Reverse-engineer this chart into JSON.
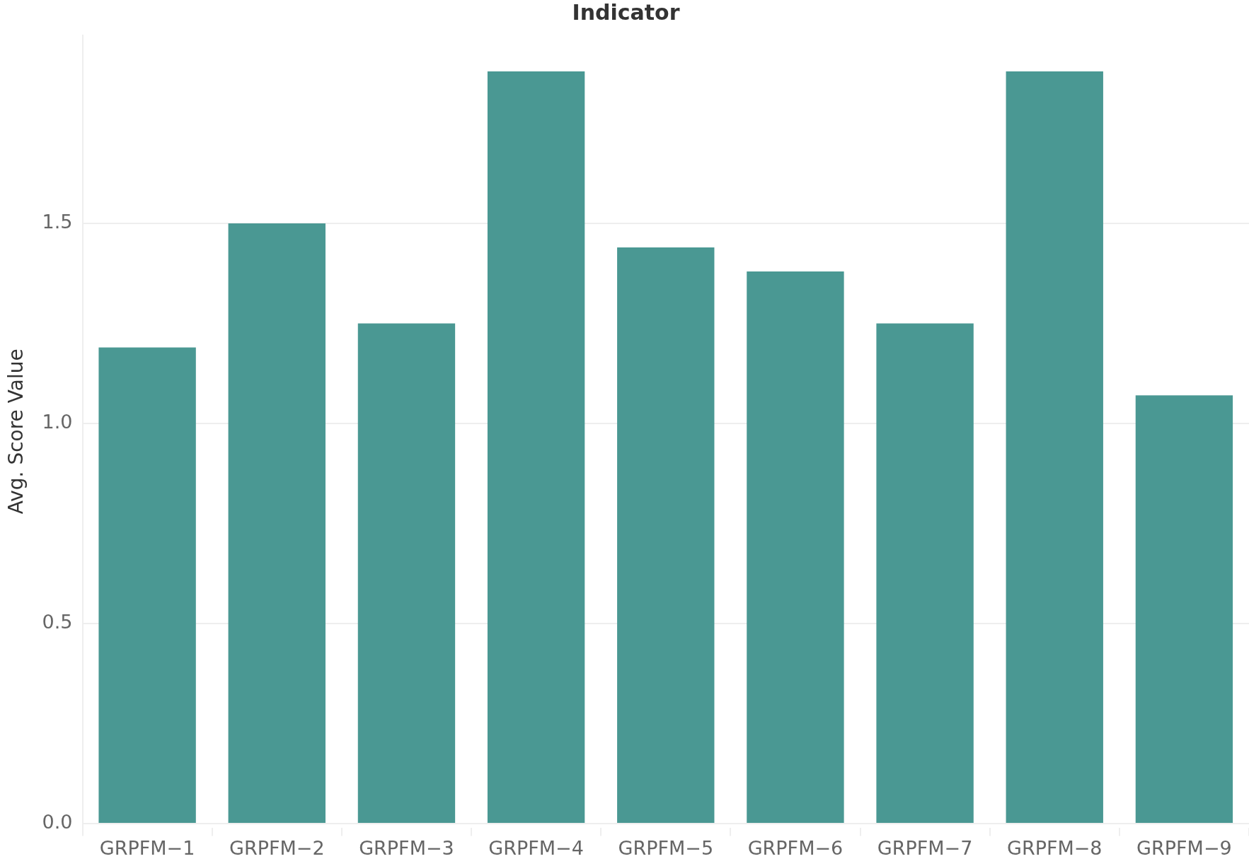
{
  "chart_data": {
    "type": "bar",
    "title": "Indicator",
    "ylabel": "Avg. Score Value",
    "categories": [
      "GRPFM−1",
      "GRPFM−2",
      "GRPFM−3",
      "GRPFM−4",
      "GRPFM−5",
      "GRPFM−6",
      "GRPFM−7",
      "GRPFM−8",
      "GRPFM−9"
    ],
    "values": [
      1.19,
      1.5,
      1.25,
      1.88,
      1.44,
      1.38,
      1.25,
      1.88,
      1.07
    ],
    "color": "#4a9893",
    "ylim": [
      -0.01,
      1.97
    ],
    "yticks": [
      {
        "value": 0,
        "label": "0.0"
      },
      {
        "value": 0.5,
        "label": "0.5"
      },
      {
        "value": 1,
        "label": "1.0"
      },
      {
        "value": 1.5,
        "label": "1.5"
      }
    ],
    "grid": "y",
    "legend": false
  }
}
